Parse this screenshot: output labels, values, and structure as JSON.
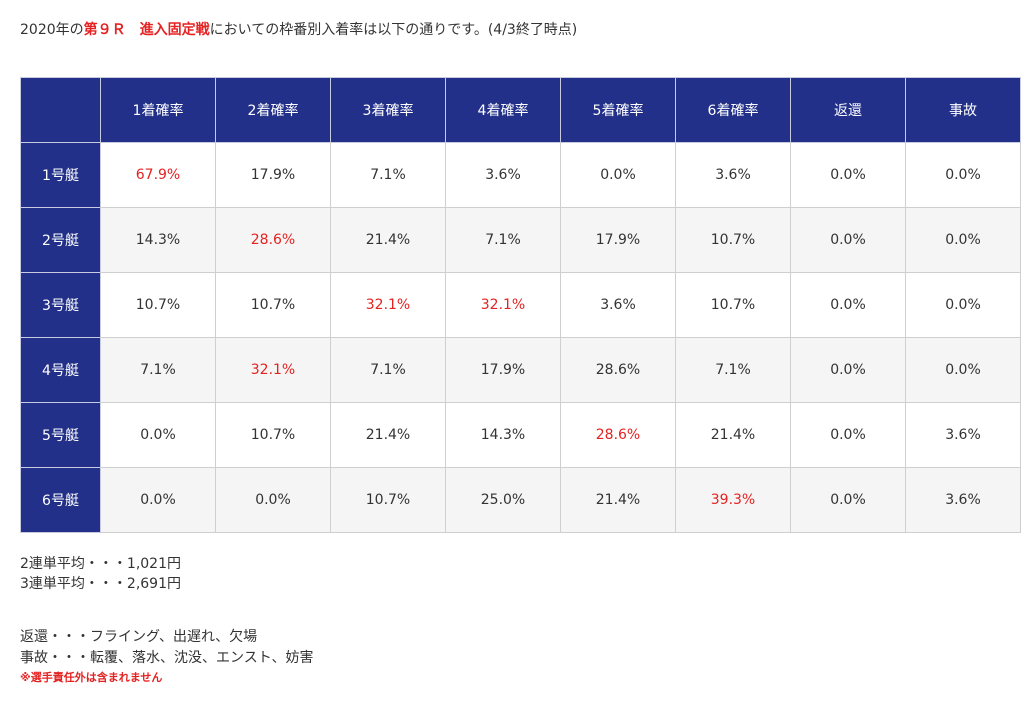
{
  "intro": {
    "prefix": "2020年の",
    "race": "第９Ｒ",
    "gap": "　",
    "race_type": "進入固定戦",
    "suffix": "においての枠番別入着率は以下の通りです。(4/3終了時点)"
  },
  "table": {
    "corner": "",
    "headers": [
      "1着確率",
      "2着確率",
      "3着確率",
      "4着確率",
      "5着確率",
      "6着確率",
      "返還",
      "事故"
    ],
    "rows": [
      {
        "label": "1号艇",
        "cells": [
          "67.9%",
          "17.9%",
          "7.1%",
          "3.6%",
          "0.0%",
          "3.6%",
          "0.0%",
          "0.0%"
        ],
        "highlight": [
          0
        ]
      },
      {
        "label": "2号艇",
        "cells": [
          "14.3%",
          "28.6%",
          "21.4%",
          "7.1%",
          "17.9%",
          "10.7%",
          "0.0%",
          "0.0%"
        ],
        "highlight": [
          1
        ]
      },
      {
        "label": "3号艇",
        "cells": [
          "10.7%",
          "10.7%",
          "32.1%",
          "32.1%",
          "3.6%",
          "10.7%",
          "0.0%",
          "0.0%"
        ],
        "highlight": [
          2,
          3
        ]
      },
      {
        "label": "4号艇",
        "cells": [
          "7.1%",
          "32.1%",
          "7.1%",
          "17.9%",
          "28.6%",
          "7.1%",
          "0.0%",
          "0.0%"
        ],
        "highlight": [
          1
        ]
      },
      {
        "label": "5号艇",
        "cells": [
          "0.0%",
          "10.7%",
          "21.4%",
          "14.3%",
          "28.6%",
          "21.4%",
          "0.0%",
          "3.6%"
        ],
        "highlight": [
          4
        ]
      },
      {
        "label": "6号艇",
        "cells": [
          "0.0%",
          "0.0%",
          "10.7%",
          "25.0%",
          "21.4%",
          "39.3%",
          "0.0%",
          "3.6%"
        ],
        "highlight": [
          5
        ]
      }
    ]
  },
  "averages": {
    "line1": "2連単平均・・・1,021円",
    "line2": "3連単平均・・・2,691円"
  },
  "notes": {
    "refund": "返還・・・フライング、出遅れ、欠場",
    "accident": "事故・・・転覆、落水、沈没、エンスト、妨害",
    "caution": "※選手責任外は含まれません"
  },
  "colors": {
    "header_bg": "#22308a",
    "highlight": "#e52222",
    "stripe": "#f5f5f5"
  }
}
